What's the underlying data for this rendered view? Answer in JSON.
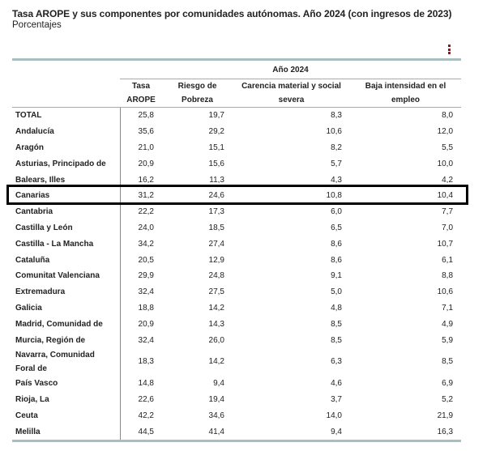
{
  "title": "Tasa AROPE y sus componentes por comunidades autónomas. Año 2024 (con ingresos de 2023)",
  "subtitle": "Porcentajes",
  "table": {
    "group_header": "Año 2024",
    "columns": [
      "Tasa AROPE",
      "Riesgo de Pobreza",
      "Carencia material y social severa",
      "Baja intensidad en el empleo"
    ],
    "rows": [
      {
        "name": "TOTAL",
        "values": [
          "25,8",
          "19,7",
          "8,3",
          "8,0"
        ]
      },
      {
        "name": "Andalucía",
        "values": [
          "35,6",
          "29,2",
          "10,6",
          "12,0"
        ]
      },
      {
        "name": "Aragón",
        "values": [
          "21,0",
          "15,1",
          "8,2",
          "5,5"
        ]
      },
      {
        "name": "Asturias, Principado de",
        "values": [
          "20,9",
          "15,6",
          "5,7",
          "10,0"
        ]
      },
      {
        "name": "Balears, Illes",
        "values": [
          "16,2",
          "11,3",
          "4,3",
          "4,2"
        ]
      },
      {
        "name": "Canarias",
        "values": [
          "31,2",
          "24,6",
          "10,8",
          "10,4"
        ],
        "highlighted": true
      },
      {
        "name": "Cantabria",
        "values": [
          "22,2",
          "17,3",
          "6,0",
          "7,7"
        ]
      },
      {
        "name": "Castilla y León",
        "values": [
          "24,0",
          "18,5",
          "6,5",
          "7,0"
        ]
      },
      {
        "name": "Castilla - La Mancha",
        "values": [
          "34,2",
          "27,4",
          "8,6",
          "10,7"
        ]
      },
      {
        "name": "Cataluña",
        "values": [
          "20,5",
          "12,9",
          "8,6",
          "6,1"
        ]
      },
      {
        "name": "Comunitat Valenciana",
        "values": [
          "29,9",
          "24,8",
          "9,1",
          "8,8"
        ]
      },
      {
        "name": "Extremadura",
        "values": [
          "32,4",
          "27,5",
          "5,0",
          "10,6"
        ]
      },
      {
        "name": "Galicia",
        "values": [
          "18,8",
          "14,2",
          "4,8",
          "7,1"
        ]
      },
      {
        "name": "Madrid, Comunidad de",
        "values": [
          "20,9",
          "14,3",
          "8,5",
          "4,9"
        ]
      },
      {
        "name": "Murcia, Región de",
        "values": [
          "32,4",
          "26,0",
          "8,5",
          "5,9"
        ]
      },
      {
        "name": "Navarra, Comunidad Foral de",
        "values": [
          "18,3",
          "14,2",
          "6,3",
          "8,5"
        ]
      },
      {
        "name": "País Vasco",
        "values": [
          "14,8",
          "9,4",
          "4,6",
          "6,9"
        ]
      },
      {
        "name": "Rioja, La",
        "values": [
          "22,6",
          "19,4",
          "3,7",
          "5,2"
        ]
      },
      {
        "name": "Ceuta",
        "values": [
          "42,2",
          "34,6",
          "14,0",
          "21,9"
        ]
      },
      {
        "name": "Melilla",
        "values": [
          "44,5",
          "41,4",
          "9,4",
          "16,3"
        ]
      }
    ]
  },
  "colors": {
    "rule": "#a9bfbf",
    "menu": "#8b1a1a",
    "highlight_border": "#000000"
  }
}
